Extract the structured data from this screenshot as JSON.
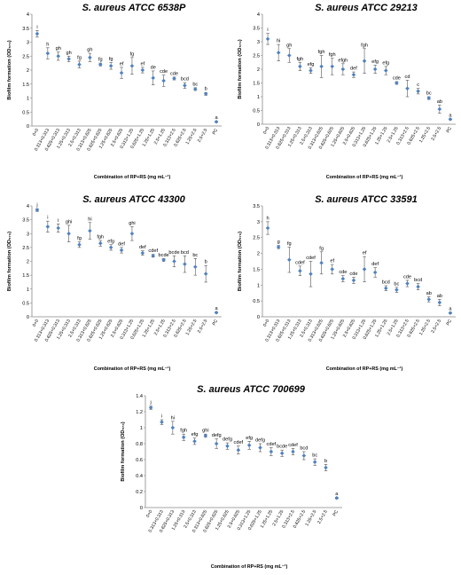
{
  "chart_data": [
    {
      "type": "scatter",
      "title": "S. aureus ATCC 6538P",
      "ylabel": "Biofilm formation (OD₅₇₀)",
      "xlabel": "Combination of RP+RS (mg mL⁻¹)",
      "ylim": [
        0,
        4
      ],
      "yticks": [
        "0",
        "0.5",
        "1",
        "1.5",
        "2",
        "2.5",
        "3",
        "3.5",
        "4"
      ],
      "categories": [
        "0+0",
        "0.313+0.313",
        "0.625+0.313",
        "1.25+0.313",
        "2.5+0.313",
        "0.313+0.625",
        "0.625+0.625",
        "1.25+0.625",
        "2.5+0.625",
        "0.313+1.25",
        "0.625+1.25",
        "1.25+1.25",
        "2.5+1.25",
        "0.313+2.5",
        "0.625+2.5",
        "1.25+2.5",
        "2.5+2.5",
        "PC"
      ],
      "values": [
        3.3,
        2.6,
        2.5,
        2.4,
        2.2,
        2.45,
        2.2,
        2.15,
        1.9,
        2.15,
        2.0,
        1.72,
        1.62,
        1.7,
        1.45,
        1.32,
        1.15,
        0.15
      ],
      "errors": [
        0.12,
        0.2,
        0.15,
        0.1,
        0.12,
        0.15,
        0.05,
        0.12,
        0.2,
        0.3,
        0.1,
        0.25,
        0.2,
        0.05,
        0.1,
        0.05,
        0.05,
        0.02
      ],
      "letters": [
        "i",
        "h",
        "gh",
        "gh",
        "fg",
        "gh",
        "fg",
        "fg",
        "ef",
        "fg",
        "ef",
        "de",
        "cde",
        "cde",
        "bcd",
        "bc",
        "b",
        "a"
      ],
      "grid": false,
      "color": "#4f81bd"
    },
    {
      "type": "scatter",
      "title": "S. aureus ATCC 29213",
      "ylabel": "Biofilm formation (OD₅₇₀)",
      "xlabel": "Combination of RP+RS (mg mL⁻¹)",
      "ylim": [
        0,
        4
      ],
      "yticks": [
        "0",
        "0.5",
        "1",
        "1.5",
        "2",
        "2.5",
        "3",
        "3.5",
        "4"
      ],
      "categories": [
        "0+0",
        "0.313+0.313",
        "0.625+0.313",
        "1.25+0.313",
        "2.5+0.313",
        "0.313+0.625",
        "0.625+0.625",
        "1.25+0.625",
        "2.5+0.625",
        "0.313+1.25",
        "0.625+1.25",
        "1.25+1.25",
        "2.5+1.25",
        "0.313+2.5",
        "0.625+2.5",
        "1.25+2.5",
        "2.5+2.5",
        "PC"
      ],
      "values": [
        3.1,
        2.6,
        2.5,
        2.1,
        1.95,
        2.1,
        2.1,
        2.0,
        1.8,
        2.3,
        2.0,
        1.95,
        1.5,
        1.3,
        1.2,
        0.95,
        0.55,
        0.18
      ],
      "errors": [
        0.2,
        0.3,
        0.25,
        0.15,
        0.1,
        0.4,
        0.3,
        0.2,
        0.1,
        0.45,
        0.15,
        0.15,
        0.05,
        0.3,
        0.1,
        0.05,
        0.15,
        0.02
      ],
      "letters": [
        "i",
        "hi",
        "gh",
        "fgh",
        "efg",
        "fgh",
        "fgh",
        "efgh",
        "def",
        "fgh",
        "efg",
        "efg",
        "cde",
        "cd",
        "c",
        "bc",
        "ab",
        "a"
      ],
      "grid": false,
      "color": "#4f81bd"
    },
    {
      "type": "scatter",
      "title": "S. aureus ATCC 43300",
      "ylabel": "Biofilm formation (OD₅₇₀)",
      "xlabel": "Combination of RP+RS (mg mL⁻¹)",
      "ylim": [
        0,
        4
      ],
      "yticks": [
        "0",
        "0.5",
        "1",
        "1.5",
        "2",
        "2.5",
        "3",
        "3.5",
        "4"
      ],
      "categories": [
        "0+0",
        "0.313+0.313",
        "0.625+0.313",
        "1.25+0.313",
        "2.5+0.313",
        "0.313+0.625",
        "0.625+0.625",
        "1.25+0.625",
        "2.5+0.625",
        "0.313+1.25",
        "0.625+1.25",
        "1.25+1.25",
        "2.5+1.25",
        "0.313+2.5",
        "0.625+2.5",
        "1.25+2.5",
        "2.5+2.5",
        "PC"
      ],
      "values": [
        3.85,
        3.25,
        3.2,
        3.0,
        2.6,
        3.1,
        2.65,
        2.5,
        2.4,
        3.0,
        2.3,
        2.2,
        2.05,
        2.0,
        1.9,
        1.8,
        1.55,
        0.15
      ],
      "errors": [
        0.05,
        0.2,
        0.15,
        0.3,
        0.1,
        0.3,
        0.1,
        0.1,
        0.1,
        0.25,
        0.08,
        0.05,
        0.05,
        0.2,
        0.3,
        0.3,
        0.3,
        0.02
      ],
      "letters": [
        "j",
        "i",
        "i",
        "ghi",
        "fg",
        "hi",
        "fgh",
        "efg",
        "def",
        "ghi",
        "def",
        "cdef",
        "bcde",
        "bcde",
        "bcd",
        "bc",
        "b",
        "a"
      ],
      "grid": false,
      "color": "#4f81bd"
    },
    {
      "type": "scatter",
      "title": "S. aureus ATCC 33591",
      "ylabel": "Biofilm formation (OD₅₇₀)",
      "xlabel": "Combination of RP+RS (mg mL⁻¹)",
      "ylim": [
        0,
        3.5
      ],
      "yticks": [
        "0",
        "0.5",
        "1",
        "1.5",
        "2",
        "2.5",
        "3",
        "3.5"
      ],
      "categories": [
        "0+0",
        "0.313+0.313",
        "0.625+0.313",
        "1.25+0.313",
        "2.5+0.313",
        "0.313+0.625",
        "0.625+0.625",
        "1.25+0.625",
        "2.5+0.625",
        "0.313+1.25",
        "0.625+1.25",
        "1.25+1.25",
        "2.5+1.25",
        "0.313+2.5",
        "0.625+2.5",
        "1.25+2.5",
        "2.5+2.5",
        "PC"
      ],
      "values": [
        2.8,
        2.2,
        1.8,
        1.45,
        1.35,
        1.7,
        1.5,
        1.2,
        1.15,
        1.5,
        1.4,
        0.9,
        0.85,
        1.05,
        0.95,
        0.55,
        0.45,
        0.12
      ],
      "errors": [
        0.2,
        0.05,
        0.4,
        0.15,
        0.4,
        0.35,
        0.15,
        0.1,
        0.1,
        0.4,
        0.15,
        0.08,
        0.08,
        0.1,
        0.1,
        0.08,
        0.1,
        0.02
      ],
      "letters": [
        "h",
        "g",
        "fg",
        "cdef",
        "cdef",
        "fg",
        "ef",
        "cde",
        "cde",
        "ef",
        "def",
        "bcd",
        "bc",
        "cde",
        "bcd",
        "ab",
        "ab",
        "a"
      ],
      "grid": false,
      "color": "#4f81bd"
    },
    {
      "type": "scatter",
      "title": "S. aureus ATCC 700699",
      "ylabel": "Biofilm formation (OD₅₇₀)",
      "xlabel": "Combination of RP+RS (mg mL⁻¹)",
      "ylim": [
        0,
        1.4
      ],
      "yticks": [
        "0",
        "0.2",
        "0.4",
        "0.6",
        "0.8",
        "1",
        "1.2",
        "1.4"
      ],
      "categories": [
        "0+0",
        "0.313+0.313",
        "0.625+0.313",
        "1.25+0.313",
        "2.5+0.313",
        "0.313+0.625",
        "0.625+0.625",
        "1.25+0.625",
        "2.5+0.625",
        "0.313+1.25",
        "0.625+1.25",
        "1.25+1.25",
        "2.5+1.25",
        "0.313+2.5",
        "0.625+2.5",
        "1.25+2.5",
        "2.5+2.5",
        "PC"
      ],
      "values": [
        1.25,
        1.07,
        1.0,
        0.88,
        0.83,
        0.9,
        0.8,
        0.77,
        0.72,
        0.78,
        0.75,
        0.7,
        0.68,
        0.7,
        0.65,
        0.57,
        0.5,
        0.12
      ],
      "errors": [
        0.02,
        0.03,
        0.08,
        0.04,
        0.04,
        0.02,
        0.06,
        0.04,
        0.05,
        0.05,
        0.05,
        0.05,
        0.04,
        0.04,
        0.05,
        0.04,
        0.04,
        0.01
      ],
      "letters": [
        "j",
        "i",
        "hi",
        "fgh",
        "efg",
        "ghi",
        "defg",
        "defg",
        "cdef",
        "efg",
        "defg",
        "cdef",
        "bcde",
        "cdef",
        "bcd",
        "bc",
        "b",
        "a"
      ],
      "grid": false,
      "color": "#4f81bd"
    }
  ]
}
